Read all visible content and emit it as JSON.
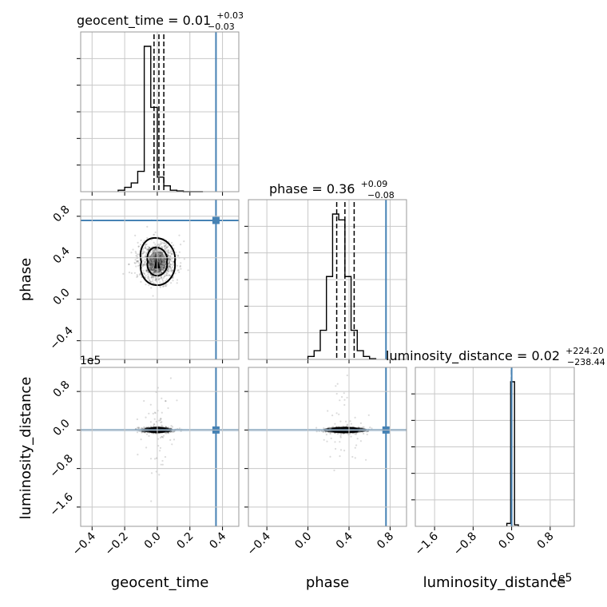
{
  "chart_data": {
    "type": "corner",
    "parameters": [
      "geocent_time",
      "phase",
      "luminosity_distance"
    ],
    "truths": {
      "geocent_time": 0.36,
      "phase": 0.76,
      "luminosity_distance": 0
    },
    "colors": {
      "truth": "#4682b4",
      "hist": "#000000",
      "grid": "#c8c8c8",
      "frame": "#999999"
    },
    "grid": true,
    "summaries": [
      {
        "parameter": "geocent_time",
        "title": "geocent_time = 0.01",
        "median": 0.01,
        "plus": "+0.03",
        "minus": "−0.03",
        "quantiles": [
          -0.02,
          0.01,
          0.04
        ]
      },
      {
        "parameter": "phase",
        "title": "phase = 0.36",
        "median": 0.36,
        "plus": "+0.09",
        "minus": "−0.08",
        "quantiles": [
          0.28,
          0.36,
          0.45
        ]
      },
      {
        "parameter": "luminosity_distance",
        "title": "luminosity_distance = 0.02",
        "median": 0.02,
        "plus": "+224.20",
        "minus": "−238.44",
        "quantiles": [
          -238,
          0,
          224
        ]
      }
    ],
    "axes": {
      "geocent_time": {
        "range": [
          -0.47,
          0.5
        ],
        "ticks": [
          -0.4,
          -0.2,
          0.0,
          0.2,
          0.4
        ],
        "tick_labels": [
          "−0.4",
          "−0.2",
          "0.0",
          "0.2",
          "0.4"
        ],
        "label": "geocent_time"
      },
      "phase": {
        "range": [
          -0.58,
          0.96
        ],
        "ticks": [
          -0.4,
          0.0,
          0.4,
          0.8
        ],
        "tick_labels": [
          "−0.4",
          "0.0",
          "0.4",
          "0.8"
        ],
        "label": "phase"
      },
      "luminosity_distance": {
        "range": [
          -200000,
          130000
        ],
        "ticks": [
          -160000,
          -80000,
          0,
          80000
        ],
        "tick_labels": [
          "−1.6",
          "−0.8",
          "0.0",
          "0.8"
        ],
        "label": "luminosity_distance",
        "offset_text": "1e5"
      }
    },
    "histograms": {
      "geocent_time": {
        "bins": [
          -0.24,
          -0.2,
          -0.16,
          -0.12,
          -0.08,
          -0.04,
          0.0,
          0.04,
          0.08,
          0.12,
          0.16,
          0.2,
          0.24,
          0.28
        ],
        "counts": [
          0.01,
          0.03,
          0.06,
          0.14,
          1.0,
          0.58,
          0.1,
          0.04,
          0.01,
          0.005,
          0,
          0,
          0
        ]
      },
      "phase": {
        "bins": [
          0.0,
          0.06,
          0.12,
          0.18,
          0.24,
          0.3,
          0.36,
          0.42,
          0.48,
          0.54,
          0.6,
          0.66
        ],
        "counts": [
          0.02,
          0.06,
          0.2,
          0.57,
          1.0,
          0.96,
          0.57,
          0.2,
          0.06,
          0.02,
          0.005
        ]
      },
      "luminosity_distance": {
        "bins": [
          -10000,
          -2000,
          6000,
          14000
        ],
        "counts": [
          0.02,
          1.0,
          0.01
        ]
      }
    },
    "panels_2d": [
      {
        "x": "geocent_time",
        "y": "phase",
        "center": [
          0.0,
          0.36
        ],
        "spread": [
          0.06,
          0.1
        ]
      },
      {
        "x": "geocent_time",
        "y": "luminosity_distance",
        "center": [
          0.0,
          0
        ],
        "spread": [
          0.05,
          5000
        ]
      },
      {
        "x": "phase",
        "y": "luminosity_distance",
        "center": [
          0.36,
          0
        ],
        "spread": [
          0.09,
          5000
        ]
      }
    ]
  }
}
